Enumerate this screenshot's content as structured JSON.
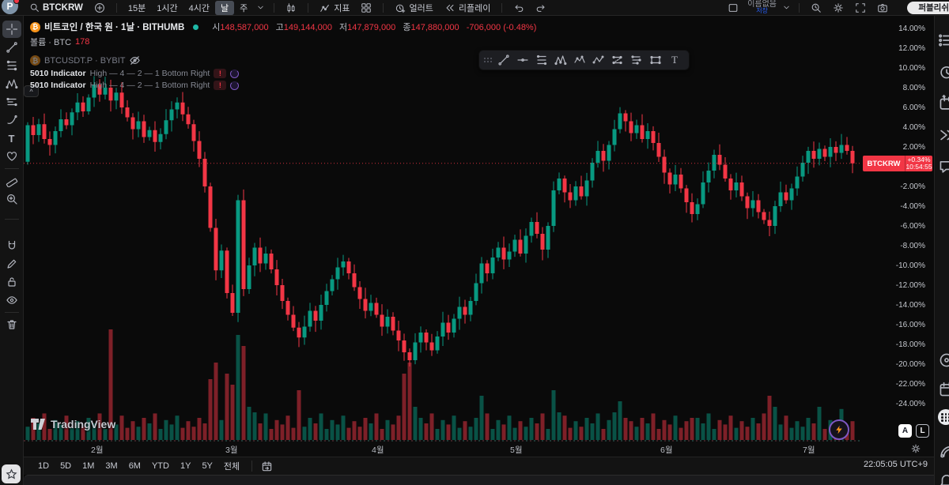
{
  "topbar": {
    "avatar_letter": "P",
    "symbol": "BTCKRW",
    "intervals": [
      "15분",
      "1시간",
      "4시간",
      "날",
      "주"
    ],
    "selected_interval": "날",
    "indicators_label": "지표",
    "alert_label": "얼러트",
    "replay_label": "리플레이",
    "layout_name": "이름없음",
    "save_label": "저장",
    "publish_label": "퍼블리쉬"
  },
  "legend": {
    "row1": {
      "title": "비트코인 / 한국 원 · 1날 · BITHUMB",
      "open_label": "시",
      "open": "148,587,000",
      "high_label": "고",
      "high": "149,144,000",
      "low_label": "저",
      "low": "147,879,000",
      "close_label": "종",
      "close": "147,880,000",
      "change": "-706,000 (-0.48%)"
    },
    "volume_row": {
      "label": "볼륨 · BTC",
      "value": "178"
    },
    "hidden_row": {
      "title": "BTCUSDT.P · BYBIT"
    },
    "indicator1": {
      "name": "5010 Indicator",
      "params": "High — 4 — 2 — 1 Bottom Right",
      "error_glyph": "!"
    },
    "indicator2": {
      "name": "5010 Indicator",
      "params": "High — 4 — 2 — 1 Bottom Right",
      "error_glyph": "!"
    }
  },
  "watermark": "TradingView",
  "price_label": {
    "symbol": "BTCKRW",
    "change": "+0.34%",
    "countdown": "10:54:55"
  },
  "axis_buttons": {
    "auto": "A",
    "log": "L"
  },
  "bottom": {
    "ranges": [
      "1D",
      "5D",
      "1M",
      "3M",
      "6M",
      "YTD",
      "1Y",
      "5Y",
      "전체"
    ],
    "clock": "22:05:05 UTC+9"
  },
  "chart_data": {
    "type": "candlestick",
    "symbol": "BTCKRW",
    "exchange": "BITHUMB",
    "scale": "percent_change",
    "title": "비트코인 / 한국 원 · 1날 · BITHUMB",
    "y_ticks_pct": [
      14,
      12,
      10,
      8,
      6,
      4,
      2,
      -2,
      -4,
      -6,
      -8,
      -10,
      -12,
      -14,
      -16,
      -18,
      -20,
      -22,
      -24
    ],
    "x_month_labels": [
      "2월",
      "3월",
      "4월",
      "5월",
      "6월",
      "7월"
    ],
    "last_change_pct": "+0.34%",
    "countdown": "10:54:55",
    "up_color": "#089981",
    "down_color": "#f23645",
    "first_open_pct": 0.5,
    "closes_pct": [
      4.2,
      3.2,
      4.3,
      2.8,
      2.2,
      3.6,
      4.8,
      4.2,
      5.5,
      6.5,
      5.6,
      7.0,
      8.3,
      7.3,
      8.0,
      6.7,
      7.5,
      6.0,
      5.0,
      3.8,
      4.6,
      3.0,
      3.7,
      2.5,
      3.3,
      4.7,
      5.8,
      6.5,
      5.3,
      4.3,
      2.6,
      0.8,
      -2.0,
      -6.2,
      -10.5,
      -8.5,
      -12.8,
      -14.8,
      -3.4,
      -12.4,
      -10.0,
      -8.2,
      -9.8,
      -8.8,
      -10.4,
      -12.0,
      -13.6,
      -15.0,
      -16.3,
      -17.3,
      -16.2,
      -14.6,
      -15.6,
      -14.0,
      -12.6,
      -11.4,
      -10.2,
      -9.6,
      -10.8,
      -12.2,
      -13.4,
      -14.6,
      -13.8,
      -15.0,
      -16.2,
      -15.2,
      -16.6,
      -17.6,
      -18.8,
      -19.6,
      -17.8,
      -16.8,
      -17.8,
      -18.6,
      -17.2,
      -15.8,
      -16.8,
      -15.4,
      -14.2,
      -15.0,
      -13.6,
      -11.8,
      -9.8,
      -10.8,
      -9.2,
      -8.2,
      -9.4,
      -8.6,
      -7.4,
      -8.8,
      -7.0,
      -5.6,
      -6.8,
      -8.4,
      -6.0,
      -2.4,
      -1.2,
      -2.6,
      -3.4,
      -2.0,
      -3.0,
      -1.4,
      0.4,
      1.6,
      0.6,
      2.2,
      3.8,
      5.4,
      4.6,
      3.4,
      4.2,
      2.8,
      3.6,
      2.4,
      1.0,
      -0.6,
      -1.8,
      -0.8,
      -2.2,
      -3.6,
      -4.8,
      -3.8,
      -1.6,
      -0.4,
      1.2,
      0.2,
      -1.2,
      -2.4,
      -1.6,
      -3.0,
      -4.2,
      -3.4,
      -4.6,
      -5.4,
      -6.0,
      -4.0,
      -2.6,
      -3.4,
      -2.2,
      -1.0,
      0.4,
      1.6,
      0.8,
      1.8,
      1.0,
      2.0,
      1.4,
      2.2,
      1.6,
      0.34
    ],
    "volumes_rel": [
      0.12,
      0.2,
      0.15,
      0.24,
      0.1,
      0.18,
      0.14,
      0.22,
      0.11,
      0.17,
      0.12,
      0.2,
      0.15,
      0.24,
      0.1,
      1.0,
      0.14,
      0.22,
      0.11,
      0.17,
      0.12,
      0.2,
      0.15,
      0.24,
      0.1,
      0.18,
      0.14,
      0.22,
      0.11,
      0.17,
      0.12,
      0.2,
      0.15,
      0.55,
      0.7,
      0.18,
      0.6,
      0.5,
      0.95,
      0.85,
      0.3,
      0.25,
      0.15,
      0.24,
      0.1,
      0.18,
      0.14,
      0.22,
      0.11,
      0.45,
      0.12,
      0.2,
      0.15,
      0.24,
      0.1,
      0.18,
      0.14,
      0.22,
      0.11,
      0.17,
      0.12,
      0.2,
      0.15,
      0.24,
      0.1,
      0.18,
      0.14,
      0.22,
      0.6,
      0.7,
      0.3,
      0.2,
      0.15,
      0.24,
      0.1,
      0.18,
      0.14,
      0.22,
      0.11,
      0.17,
      0.12,
      0.2,
      0.4,
      0.24,
      0.1,
      0.18,
      0.14,
      0.22,
      0.11,
      0.17,
      0.12,
      0.2,
      0.15,
      0.24,
      0.1,
      0.45,
      0.25,
      0.22,
      0.11,
      0.17,
      0.12,
      0.2,
      0.15,
      0.24,
      0.1,
      0.18,
      0.25,
      0.35,
      0.2,
      0.17,
      0.12,
      0.2,
      0.15,
      0.24,
      0.1,
      0.18,
      0.14,
      0.22,
      0.11,
      0.17,
      0.2,
      0.2,
      0.15,
      0.24,
      0.1,
      0.18,
      0.14,
      0.22,
      0.11,
      0.17,
      0.12,
      0.2,
      0.15,
      0.24,
      0.4,
      0.3,
      0.14,
      0.22,
      0.11,
      0.17,
      0.12,
      0.2,
      0.15,
      0.3,
      0.1,
      0.18,
      0.14,
      0.28,
      0.11,
      0.17
    ]
  }
}
